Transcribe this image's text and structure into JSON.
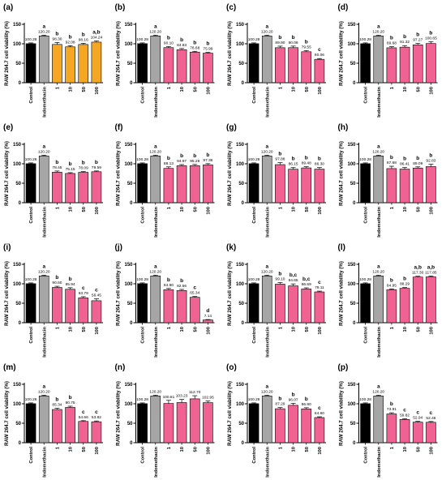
{
  "colors": {
    "control": "#000000",
    "indomethacin": "#a6a6a6",
    "orange": "#f5a623",
    "pink": "#f06292",
    "axis": "#000000"
  },
  "chart_data": [
    {
      "panel": "(a)",
      "type": "bar",
      "ylabel": "RAW 264.7 cell viability (%)",
      "ylim": [
        0,
        150
      ],
      "yticks": [
        0,
        50,
        100,
        150
      ],
      "categories": [
        "Control",
        "Indomethacin",
        "1",
        "10",
        "50",
        "100"
      ],
      "values": [
        100.28,
        120.2,
        98.3,
        92.08,
        98.16,
        104.24
      ],
      "value_labels": [
        "100.28",
        "120.20",
        "98.30",
        "92.08",
        "98.16",
        "104.24"
      ],
      "letters": [
        "",
        "a",
        "b",
        "b",
        "b",
        "a,b"
      ],
      "errors": [
        2,
        2,
        5,
        3,
        3,
        3
      ],
      "treatment_color": "orange"
    },
    {
      "panel": "(b)",
      "type": "bar",
      "ylabel": "RAW 264.7 cell viability (%)",
      "ylim": [
        0,
        150
      ],
      "yticks": [
        0,
        50,
        100,
        150
      ],
      "categories": [
        "Control",
        "Indomethacin",
        "1",
        "10",
        "50",
        "100"
      ],
      "values": [
        100.28,
        120.2,
        90.1,
        84.83,
        78.68,
        75.99
      ],
      "value_labels": [
        "100.28",
        "120.20",
        "90.10",
        "84.83",
        "78.68",
        "75.99"
      ],
      "letters": [
        "",
        "a",
        "b",
        "b",
        "b",
        "b"
      ],
      "errors": [
        2,
        2,
        3,
        3,
        2,
        2
      ],
      "treatment_color": "pink"
    },
    {
      "panel": "(c)",
      "type": "bar",
      "ylabel": "RAW 264.7 cell viability (%)",
      "ylim": [
        0,
        150
      ],
      "yticks": [
        0,
        50,
        100,
        150
      ],
      "categories": [
        "Control",
        "Indomethacin",
        "1",
        "10",
        "50",
        "100"
      ],
      "values": [
        100.28,
        120.2,
        89.9,
        90.08,
        79.55,
        60.06
      ],
      "value_labels": [
        "100.28",
        "120.20",
        "89.90",
        "90.08",
        "79.55",
        "60.06"
      ],
      "letters": [
        "",
        "a",
        "b",
        "b",
        "b",
        "c"
      ],
      "errors": [
        2,
        2,
        4,
        4,
        3,
        2
      ],
      "treatment_color": "pink"
    },
    {
      "panel": "(d)",
      "type": "bar",
      "ylabel": "RAW 264.7 cell viability (%)",
      "ylim": [
        0,
        150
      ],
      "yticks": [
        0,
        50,
        100,
        150
      ],
      "categories": [
        "Control",
        "Indomethacin",
        "1",
        "10",
        "50",
        "100"
      ],
      "values": [
        100.28,
        120.2,
        89.68,
        91.32,
        97.27,
        100.65
      ],
      "value_labels": [
        "100.28",
        "120.20",
        "89.68",
        "91.32",
        "97.27",
        "100.65"
      ],
      "letters": [
        "",
        "a",
        "b",
        "b",
        "b",
        "b"
      ],
      "errors": [
        2,
        2,
        3,
        4,
        4,
        5
      ],
      "treatment_color": "pink"
    },
    {
      "panel": "(e)",
      "type": "bar",
      "ylabel": "RAW 264.7 cell viability (%)",
      "ylim": [
        0,
        150
      ],
      "yticks": [
        0,
        50,
        100,
        150
      ],
      "categories": [
        "Control",
        "Indomethacin",
        "1",
        "10",
        "50",
        "100"
      ],
      "values": [
        100.28,
        120.2,
        78.45,
        75.15,
        78.09,
        79.59
      ],
      "value_labels": [
        "100.28",
        "120.20",
        "78.45",
        "75.15",
        "78.09",
        "79.59"
      ],
      "letters": [
        "",
        "a",
        "b",
        "b",
        "b",
        "b"
      ],
      "errors": [
        2,
        2,
        3,
        2,
        2,
        2
      ],
      "treatment_color": "pink"
    },
    {
      "panel": "(f)",
      "type": "bar",
      "ylabel": "RAW 264.7 cell viability (%)",
      "ylim": [
        0,
        150
      ],
      "yticks": [
        0,
        50,
        100,
        150
      ],
      "categories": [
        "Control",
        "Indomethacin",
        "1",
        "10",
        "50",
        "100"
      ],
      "values": [
        100.28,
        120.2,
        88.13,
        94.97,
        95.28,
        97.36
      ],
      "value_labels": [
        "100.28",
        "120.20",
        "88.13",
        "94.97",
        "95.28",
        "97.36"
      ],
      "letters": [
        "",
        "a",
        "b",
        "b",
        "b",
        "b"
      ],
      "errors": [
        2,
        2,
        4,
        3,
        3,
        3
      ],
      "treatment_color": "pink"
    },
    {
      "panel": "(g)",
      "type": "bar",
      "ylabel": "RAW 264.7 cell viability (%)",
      "ylim": [
        0,
        150
      ],
      "yticks": [
        0,
        50,
        100,
        150
      ],
      "categories": [
        "Control",
        "Indomethacin",
        "1",
        "10",
        "50",
        "100"
      ],
      "values": [
        100.28,
        120.2,
        97.88,
        86.15,
        89.48,
        86.3
      ],
      "value_labels": [
        "100.28",
        "120.20",
        "97.88",
        "86.15",
        "89.48",
        "86.30"
      ],
      "letters": [
        "",
        "a",
        "b",
        "b",
        "b",
        "b"
      ],
      "errors": [
        2,
        2,
        5,
        4,
        3,
        4
      ],
      "treatment_color": "pink"
    },
    {
      "panel": "(h)",
      "type": "bar",
      "ylabel": "RAW 264.7 cell viability (%)",
      "ylim": [
        0,
        150
      ],
      "yticks": [
        0,
        50,
        100,
        150
      ],
      "categories": [
        "Control",
        "Indomethacin",
        "1",
        "10",
        "50",
        "100"
      ],
      "values": [
        100.28,
        120.2,
        87.68,
        86.41,
        89.09,
        92.83
      ],
      "value_labels": [
        "100.28",
        "120.20",
        "87.68",
        "86.41",
        "89.09",
        "92.83"
      ],
      "letters": [
        "",
        "a",
        "b",
        "b",
        "b",
        "b"
      ],
      "errors": [
        2,
        2,
        6,
        4,
        3,
        6
      ],
      "treatment_color": "pink"
    },
    {
      "panel": "(i)",
      "type": "bar",
      "ylabel": "RAW 264.7 cell viability (%)",
      "ylim": [
        0,
        150
      ],
      "yticks": [
        0,
        50,
        100,
        150
      ],
      "categories": [
        "Control",
        "Indomethacin",
        "1",
        "10",
        "50",
        "100"
      ],
      "values": [
        100.28,
        120.2,
        90.6,
        85.94,
        63.79,
        56.45
      ],
      "value_labels": [
        "100.28",
        "120.20",
        "90.60",
        "85.94",
        "63.79",
        "56.45"
      ],
      "letters": [
        "",
        "a",
        "b",
        "b",
        "c",
        "c"
      ],
      "errors": [
        2,
        2,
        3,
        4,
        3,
        5
      ],
      "treatment_color": "pink"
    },
    {
      "panel": "(j)",
      "type": "bar",
      "ylabel": "RAW 264.7 cell viability (%)",
      "ylim": [
        0,
        150
      ],
      "yticks": [
        0,
        50,
        100,
        150
      ],
      "categories": [
        "Control",
        "Indomethacin",
        "1",
        "10",
        "50",
        "100"
      ],
      "values": [
        100.28,
        120.2,
        84.9,
        82.56,
        65.34,
        7.14
      ],
      "value_labels": [
        "100.28",
        "120.20",
        "84.90",
        "82.56",
        "65.34",
        "7.14"
      ],
      "letters": [
        "",
        "a",
        "b",
        "b",
        "c",
        "d"
      ],
      "errors": [
        2,
        2,
        3,
        3,
        2,
        1
      ],
      "treatment_color": "pink"
    },
    {
      "panel": "(k)",
      "type": "bar",
      "ylabel": "RAW 264.7 cell viability (%)",
      "ylim": [
        0,
        150
      ],
      "yticks": [
        0,
        50,
        100,
        150
      ],
      "categories": [
        "Control",
        "Indomethacin",
        "1",
        "10",
        "50",
        "100"
      ],
      "values": [
        100.28,
        120.2,
        99.1,
        94.65,
        86.59,
        79.11
      ],
      "value_labels": [
        "100.28",
        "120.20",
        "99.10",
        "94.65",
        "86.59",
        "79.11"
      ],
      "letters": [
        "",
        "a",
        "b",
        "b,c",
        "b,c",
        "c"
      ],
      "errors": [
        2,
        2,
        4,
        5,
        3,
        2
      ],
      "treatment_color": "pink"
    },
    {
      "panel": "(l)",
      "type": "bar",
      "ylabel": "RAW 264.7 cell viability (%)",
      "ylim": [
        0,
        150
      ],
      "yticks": [
        0,
        50,
        100,
        150
      ],
      "categories": [
        "Control",
        "Indomethacin",
        "1",
        "10",
        "50",
        "100"
      ],
      "values": [
        100.28,
        120.2,
        84.95,
        88.29,
        117.3,
        117.85
      ],
      "value_labels": [
        "100.28",
        "120.20",
        "84.95",
        "88.29",
        "117.30",
        "117.85"
      ],
      "letters": [
        "",
        "a",
        "b",
        "b",
        "a,b",
        "a,b"
      ],
      "errors": [
        2,
        2,
        2,
        2,
        2,
        2
      ],
      "treatment_color": "pink"
    },
    {
      "panel": "(m)",
      "type": "bar",
      "ylabel": "RAW 264.7 cell viability (%)",
      "ylim": [
        0,
        150
      ],
      "yticks": [
        0,
        50,
        100,
        150
      ],
      "categories": [
        "Control",
        "Indomethacin",
        "1",
        "10",
        "50",
        "100"
      ],
      "values": [
        100.28,
        120.2,
        85.34,
        90.75,
        54.66,
        53.82
      ],
      "value_labels": [
        "100.28",
        "120.20",
        "85.34",
        "90.75",
        "54.66",
        "53.82"
      ],
      "letters": [
        "",
        "a",
        "b",
        "b",
        "c",
        "c"
      ],
      "errors": [
        2,
        2,
        3,
        3,
        2,
        2
      ],
      "treatment_color": "pink"
    },
    {
      "panel": "(n)",
      "type": "bar",
      "ylabel": "RAW 264.7 cell viability (%)",
      "ylim": [
        0,
        150
      ],
      "yticks": [
        0,
        50,
        100,
        150
      ],
      "categories": [
        "Control",
        "Indomethacin",
        "1",
        "10",
        "50",
        "100"
      ],
      "values": [
        100.28,
        120.2,
        100.81,
        103.23,
        112.7,
        102.95
      ],
      "value_labels": [
        "100.28",
        "120.20",
        "100.81",
        "103.23",
        "112.70",
        "102.95"
      ],
      "letters": [
        "",
        "",
        "",
        "",
        "",
        ""
      ],
      "errors": [
        2,
        2,
        8,
        8,
        8,
        4
      ],
      "treatment_color": "pink"
    },
    {
      "panel": "(o)",
      "type": "bar",
      "ylabel": "RAW 264.7 cell viability (%)",
      "ylim": [
        0,
        150
      ],
      "yticks": [
        0,
        50,
        100,
        150
      ],
      "categories": [
        "Control",
        "Indomethacin",
        "1",
        "10",
        "50",
        "100"
      ],
      "values": [
        100.28,
        120.2,
        87.29,
        96.07,
        86.9,
        64.6
      ],
      "value_labels": [
        "100.28",
        "120.20",
        "87.29",
        "96.07",
        "86.90",
        "64.60"
      ],
      "letters": [
        "",
        "a",
        "b",
        "b",
        "b",
        "c"
      ],
      "errors": [
        2,
        2,
        3,
        5,
        3,
        2
      ],
      "treatment_color": "pink"
    },
    {
      "panel": "(p)",
      "type": "bar",
      "ylabel": "RAW 264.7 cell viability (%)",
      "ylim": [
        0,
        150
      ],
      "yticks": [
        0,
        50,
        100,
        150
      ],
      "categories": [
        "Control",
        "Indomethacin",
        "1",
        "10",
        "50",
        "100"
      ],
      "values": [
        100.28,
        120.2,
        73.91,
        59.82,
        52.94,
        52.48
      ],
      "value_labels": [
        "100.28",
        "120.20",
        "73.91",
        "59.82",
        "52.94",
        "52.48"
      ],
      "letters": [
        "",
        "a",
        "b",
        "c",
        "c",
        "c"
      ],
      "errors": [
        2,
        2,
        3,
        2,
        2,
        2
      ],
      "treatment_color": "pink"
    }
  ]
}
